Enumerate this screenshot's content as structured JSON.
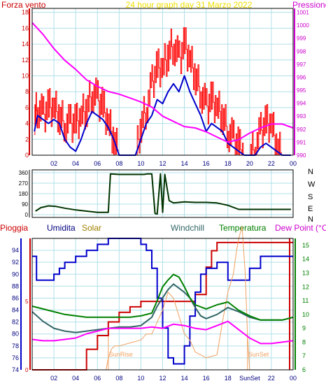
{
  "colors": {
    "background": "#ffffff",
    "grid": "#b0e0e8",
    "wind": "#ff0000",
    "gust": "#0000cc",
    "pressure": "#ff00ff",
    "direction": "#003300",
    "rain": "#cc0000",
    "humidity": "#0000cc",
    "solar": "#f0a060",
    "windchill": "#336666",
    "temperature": "#008000",
    "dewpoint": "#ff00ff",
    "sun_marker": "#f0a060"
  },
  "chart_data": [
    {
      "type": "line",
      "title": "24 hour graph day   31 Marzo 2022",
      "title_color": "#f0e000",
      "left_label": "Forza vento",
      "left_label_color": "#cc0000",
      "right_label": "Pressione",
      "right_label_color": "#cc00cc",
      "x_ticks": [
        "02",
        "04",
        "06",
        "08",
        "10",
        "12",
        "14",
        "16",
        "18",
        "20",
        "22",
        "00"
      ],
      "y_left_ticks": [
        "0",
        "2",
        "4",
        "6",
        "8",
        "10",
        "12",
        "14",
        "16",
        "18"
      ],
      "y_left_range": [
        0,
        18.5
      ],
      "y_right_ticks": [
        "990",
        "991",
        "992",
        "993",
        "994",
        "995",
        "996",
        "997",
        "998",
        "999",
        "1000",
        "1001"
      ],
      "y_right_range": [
        990,
        1001.3
      ],
      "series": [
        {
          "key": "wind",
          "axis": "left",
          "style": "noisy-red",
          "x": [
            0.2,
            0.5,
            1,
            1.5,
            2,
            2.5,
            3,
            3.5,
            4,
            4.5,
            5,
            5.5,
            6,
            6.5,
            7,
            7.5,
            8,
            8.5,
            9,
            9.5,
            10,
            10.5,
            11,
            11.5,
            12,
            12.5,
            13,
            13.5,
            14,
            14.5,
            15,
            15.5,
            16,
            16.5,
            17,
            17.5,
            18,
            18.5,
            19,
            19.5,
            20,
            20.5,
            21,
            21.5,
            22,
            22.5,
            23,
            23.8
          ],
          "y": [
            5,
            6,
            5,
            6,
            6,
            5,
            4,
            4,
            4,
            5,
            6,
            8,
            7,
            6,
            4,
            2,
            0,
            0,
            0,
            0,
            4,
            6,
            9,
            11,
            11,
            13,
            14,
            12,
            14,
            12,
            10,
            8,
            6,
            7,
            6,
            5,
            3,
            2,
            1,
            0,
            0,
            1,
            3,
            4,
            4,
            1,
            0,
            0
          ]
        },
        {
          "key": "gust",
          "axis": "left",
          "x": [
            0.2,
            0.5,
            1,
            1.5,
            2,
            2.5,
            3,
            3.5,
            4,
            4.5,
            5,
            5.5,
            6,
            6.5,
            7,
            7.5,
            8,
            8.5,
            9,
            9.5,
            10,
            10.5,
            11,
            11.5,
            12,
            12.5,
            13,
            13.5,
            14,
            14.5,
            15,
            15.5,
            16,
            16.5,
            17,
            17.5,
            18,
            18.5,
            19,
            19.5,
            20,
            20.5,
            21,
            21.5,
            22,
            22.5,
            23,
            23.8
          ],
          "y": [
            3,
            5,
            4.5,
            4,
            4.5,
            4,
            2,
            1,
            0.5,
            2,
            4,
            5.5,
            5,
            4.5,
            3.5,
            2,
            0,
            0,
            0,
            0,
            2,
            4,
            5,
            7,
            6.5,
            8,
            9,
            8,
            10,
            8,
            6.5,
            5,
            3,
            4,
            3.5,
            3,
            1.5,
            1,
            0.5,
            0,
            0,
            0,
            1,
            1.5,
            1,
            0.5,
            0,
            0
          ]
        },
        {
          "key": "pressure",
          "axis": "right",
          "x": [
            0,
            1,
            2,
            3,
            4,
            5,
            6,
            7,
            8,
            9,
            10,
            11,
            12,
            13,
            14,
            15,
            16,
            17,
            18,
            19,
            20,
            21,
            22,
            23,
            24
          ],
          "y": [
            1000.2,
            999.3,
            998.2,
            997.3,
            996.6,
            995.8,
            995.3,
            994.9,
            994.7,
            994.4,
            994.1,
            993.7,
            993.0,
            992.6,
            992.2,
            992.1,
            991.8,
            991.4,
            991.0,
            991.2,
            991.7,
            992.1,
            992.4,
            992.4,
            992.1
          ]
        }
      ]
    },
    {
      "type": "line",
      "right_labels": [
        "N",
        "W",
        "S",
        "E",
        "N"
      ],
      "y_ticks": [
        "0",
        "90",
        "180",
        "270",
        "360"
      ],
      "y_range": [
        0,
        360
      ],
      "x": [
        0.3,
        0.8,
        1.5,
        2.2,
        3,
        4,
        5,
        6,
        7,
        7.2,
        8,
        9,
        10,
        10.3,
        10.6,
        11,
        11.3,
        11.5,
        11.8,
        12,
        12.2,
        12.6,
        13,
        14,
        15,
        16,
        17,
        18,
        19,
        20,
        21,
        22,
        23,
        23.8
      ],
      "y": [
        30,
        60,
        75,
        70,
        55,
        40,
        30,
        20,
        20,
        350,
        345,
        345,
        345,
        345,
        350,
        350,
        10,
        5,
        350,
        20,
        345,
        120,
        100,
        110,
        105,
        105,
        100,
        80,
        45,
        45,
        45,
        45,
        45,
        45
      ]
    },
    {
      "type": "line",
      "labels": [
        {
          "text": "Pioggia",
          "color": "#cc0000"
        },
        {
          "text": "Umidita",
          "color": "#000080"
        },
        {
          "text": "Solar",
          "color": "#a08000"
        },
        {
          "text": "Windchill",
          "color": "#336666"
        },
        {
          "text": "Temperatura",
          "color": "#008000"
        },
        {
          "text": "Dew Point (°C)",
          "color": "#cc00cc"
        }
      ],
      "x_ticks": [
        "02",
        "04",
        "06",
        "08",
        "10",
        "12",
        "14",
        "16",
        "18",
        "SunSet",
        "22",
        "00"
      ],
      "y_left_ticks": [
        "74",
        "76",
        "78",
        "80",
        "82",
        "84",
        "86",
        "88",
        "90",
        "92",
        "94"
      ],
      "y_left_range": [
        74,
        96
      ],
      "y_right_ticks": [
        "6",
        "7",
        "8",
        "9",
        "10",
        "11",
        "12",
        "13",
        "14",
        "15"
      ],
      "y_right_range": [
        6,
        15.5
      ],
      "rain_ticks": [
        "0",
        "5"
      ],
      "sun_labels": [
        {
          "text": "SunRise",
          "x": 7.0
        },
        {
          "text": "SunSet",
          "x": 19.8
        }
      ],
      "series": [
        {
          "key": "rain",
          "axis": "rain",
          "x": [
            0,
            4,
            5,
            6,
            7,
            8,
            9,
            10,
            12,
            13,
            14,
            15,
            16,
            16.5,
            17,
            18,
            24
          ],
          "y": [
            0,
            0,
            1.5,
            2.5,
            3.5,
            4.2,
            4.6,
            5.0,
            5.0,
            5.0,
            5.0,
            5.5,
            7.5,
            8.7,
            9.3,
            9.3,
            9.3
          ]
        },
        {
          "key": "humidity",
          "axis": "left",
          "x": [
            0,
            0.3,
            0.4,
            2,
            2.5,
            3,
            4,
            5,
            6,
            7,
            8,
            9,
            10,
            10.5,
            11,
            11.5,
            12,
            12.5,
            13,
            13.5,
            14,
            14.5,
            15,
            15.5,
            16,
            17,
            18,
            19,
            20,
            21,
            22,
            23,
            24
          ],
          "y": [
            93,
            93,
            89,
            90,
            91,
            92,
            93,
            94,
            95,
            96,
            96,
            96,
            95,
            94,
            91,
            86,
            81,
            76,
            75,
            75,
            78,
            83,
            87,
            90,
            91,
            92,
            89,
            89,
            91,
            93,
            93,
            93,
            93
          ]
        },
        {
          "key": "solar",
          "axis": "left",
          "x": [
            0,
            6.8,
            7,
            7.3,
            7.6,
            8,
            9,
            10,
            10.5,
            11,
            11.5,
            12,
            12.5,
            13,
            13.5,
            14,
            14.5,
            15,
            16,
            17,
            17.5,
            18,
            18.5,
            18.8,
            19,
            19.3,
            19.6,
            19.8,
            20
          ],
          "y": [
            74,
            74,
            76,
            77.5,
            78,
            78,
            78.5,
            79,
            80,
            80,
            82,
            84,
            87,
            86,
            83,
            80,
            79,
            77,
            76,
            76.5,
            82,
            87,
            90,
            94,
            96,
            98,
            90,
            80,
            74
          ]
        },
        {
          "key": "windchill",
          "axis": "right",
          "x": [
            0,
            1,
            2,
            3,
            4,
            5,
            6,
            7,
            8,
            9,
            10,
            11,
            11.5,
            12,
            12.5,
            13,
            13.5,
            14,
            14.5,
            15,
            15.5,
            16,
            17,
            18,
            19,
            20,
            21,
            22,
            23,
            24
          ],
          "y": [
            10.2,
            9.5,
            9.0,
            8.8,
            8.7,
            8.8,
            8.9,
            9.0,
            9.1,
            9.1,
            9.2,
            9.8,
            10.6,
            11.2,
            11.8,
            12.2,
            11.9,
            11.6,
            11.2,
            10.5,
            9.9,
            9.7,
            10.0,
            10.5,
            10.2,
            9.8,
            9.6,
            9.6,
            9.6,
            9.8
          ]
        },
        {
          "key": "temperature",
          "axis": "right",
          "x": [
            0,
            1,
            2,
            3,
            4,
            5,
            6,
            7,
            8,
            9,
            10,
            11,
            11.5,
            12,
            12.5,
            13,
            13.5,
            14,
            14.5,
            15,
            16,
            17,
            18,
            18.5,
            19,
            20,
            21,
            22,
            23,
            24
          ],
          "y": [
            10.6,
            10.4,
            10.2,
            10.0,
            9.9,
            9.8,
            9.8,
            9.8,
            9.8,
            9.8,
            9.9,
            10.1,
            11.0,
            12.0,
            12.5,
            12.9,
            12.7,
            12.0,
            11.2,
            10.7,
            10.4,
            10.7,
            10.9,
            10.6,
            10.3,
            9.9,
            9.6,
            9.6,
            9.6,
            9.8
          ]
        },
        {
          "key": "dewpoint",
          "axis": "right",
          "x": [
            0,
            1,
            2,
            3,
            4,
            5,
            6,
            7,
            8,
            9,
            10,
            11,
            12,
            13,
            14,
            15,
            16,
            17,
            18,
            19,
            20,
            21,
            22,
            23,
            24
          ],
          "y": [
            8.2,
            8.1,
            8.1,
            8.2,
            8.3,
            8.6,
            8.8,
            9.0,
            9.0,
            9.0,
            9.0,
            9.1,
            9.0,
            9.3,
            9.2,
            9.0,
            8.9,
            9.2,
            9.5,
            8.9,
            8.3,
            7.9,
            7.9,
            8.0,
            8.1
          ]
        }
      ]
    }
  ]
}
